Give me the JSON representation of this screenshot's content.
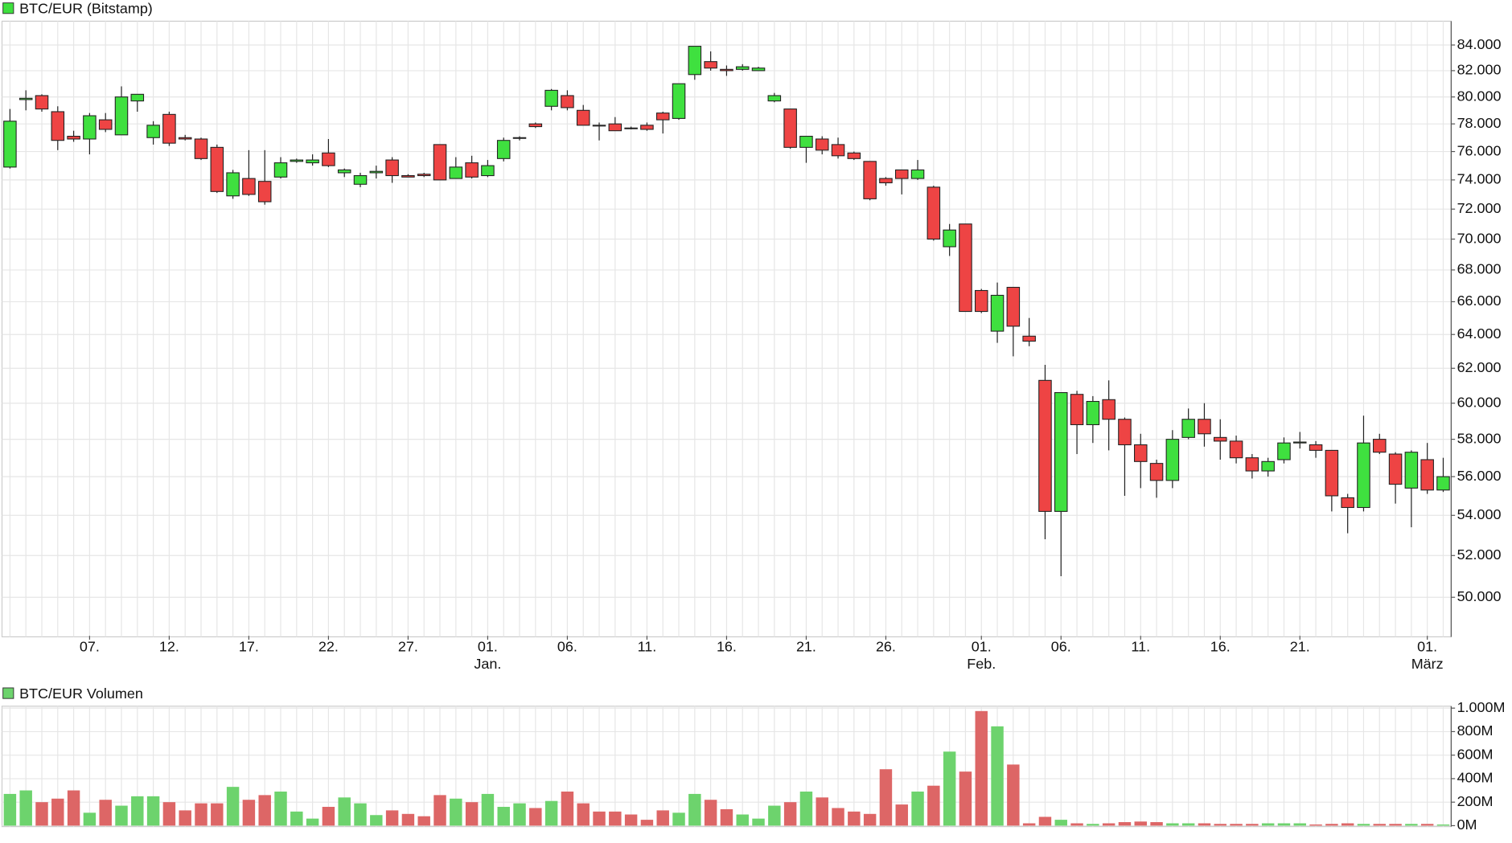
{
  "chart_data": [
    {
      "type": "candlestick",
      "title": "BTC/EUR (Bitstamp)",
      "log": true,
      "grid": true,
      "up_color": "#3fe03f",
      "down_color": "#ee4444",
      "categories": [
        null,
        null,
        null,
        null,
        null,
        "07.",
        null,
        null,
        null,
        null,
        "12.",
        null,
        null,
        null,
        null,
        "17.",
        null,
        null,
        null,
        null,
        "22.",
        null,
        null,
        null,
        null,
        "27.",
        null,
        null,
        null,
        null,
        "01.",
        null,
        null,
        null,
        null,
        "06.",
        null,
        null,
        null,
        null,
        "11.",
        null,
        null,
        null,
        null,
        "16.",
        null,
        null,
        null,
        null,
        "21.",
        null,
        null,
        null,
        null,
        "26.",
        null,
        null,
        null,
        null,
        null,
        "01.",
        null,
        null,
        null,
        null,
        "06.",
        null,
        null,
        null,
        null,
        "11.",
        null,
        null,
        null,
        null,
        "16.",
        null,
        null,
        null,
        null,
        "21.",
        null,
        null,
        null,
        null,
        null,
        null,
        null,
        "01.",
        null
      ],
      "category_sublabels": [
        null,
        null,
        null,
        null,
        null,
        null,
        null,
        null,
        null,
        null,
        null,
        null,
        null,
        null,
        null,
        null,
        null,
        null,
        null,
        null,
        null,
        null,
        null,
        null,
        null,
        null,
        null,
        null,
        null,
        null,
        "Jan.",
        null,
        null,
        null,
        null,
        null,
        null,
        null,
        null,
        null,
        null,
        null,
        null,
        null,
        null,
        null,
        null,
        null,
        null,
        null,
        null,
        null,
        null,
        null,
        null,
        null,
        null,
        null,
        null,
        null,
        null,
        "Feb.",
        null,
        null,
        null,
        null,
        null,
        null,
        null,
        null,
        null,
        null,
        null,
        null,
        null,
        null,
        null,
        null,
        null,
        null,
        null,
        null,
        null,
        null,
        null,
        null,
        null,
        null,
        null,
        "März",
        null
      ],
      "open": [
        74900,
        79800,
        80100,
        78900,
        77100,
        76900,
        78300,
        77200,
        79700,
        77000,
        78700,
        77000,
        76900,
        76300,
        72900,
        74100,
        73900,
        74200,
        75300,
        75200,
        75900,
        74500,
        73700,
        74500,
        75400,
        74300,
        74400,
        76500,
        74100,
        75200,
        74300,
        75500,
        76950,
        78000,
        79300,
        80100,
        79000,
        77900,
        78000,
        77700,
        77900,
        78800,
        78400,
        81700,
        82700,
        82100,
        82100,
        82000,
        79700,
        79100,
        76300,
        76900,
        76500,
        75900,
        75300,
        74100,
        74700,
        74100,
        73500,
        69500,
        71000,
        66700,
        64200,
        66900,
        63900,
        61300,
        54200,
        60500,
        58800,
        60200,
        59100,
        57700,
        56700,
        55800,
        58100,
        59100,
        58100,
        57900,
        57000,
        56300,
        56900,
        57800,
        57700,
        57400,
        54900,
        54400,
        58000,
        57200,
        55400,
        56900,
        55300
      ],
      "high": [
        79100,
        80500,
        80200,
        79300,
        77500,
        78800,
        78800,
        80800,
        80200,
        78200,
        78900,
        77200,
        77000,
        76500,
        74700,
        76100,
        76100,
        75600,
        75500,
        75800,
        76900,
        74800,
        74500,
        75000,
        75600,
        74400,
        74500,
        76500,
        75600,
        75700,
        75400,
        77000,
        77100,
        78100,
        80600,
        80500,
        79400,
        78100,
        78500,
        77800,
        78100,
        78900,
        81000,
        83900,
        83500,
        82400,
        82500,
        82300,
        80300,
        79100,
        77100,
        77100,
        77000,
        76000,
        75300,
        74200,
        74700,
        75400,
        73600,
        71000,
        71000,
        66800,
        67200,
        66900,
        65000,
        62200,
        60600,
        60700,
        60400,
        61300,
        59200,
        58300,
        56900,
        58500,
        59700,
        60000,
        59100,
        58200,
        57200,
        57000,
        58100,
        58400,
        57900,
        57400,
        55100,
        59300,
        58300,
        57300,
        57400,
        57800,
        57000
      ],
      "low": [
        74800,
        79000,
        78900,
        76100,
        76700,
        75800,
        77400,
        77200,
        78900,
        76500,
        76400,
        76800,
        75400,
        73100,
        72700,
        72900,
        72300,
        74100,
        75200,
        75000,
        74900,
        74200,
        73500,
        74100,
        73800,
        74200,
        74200,
        74000,
        74100,
        74100,
        74200,
        75300,
        76800,
        77700,
        79000,
        79000,
        77900,
        76800,
        77500,
        77600,
        77500,
        77300,
        78300,
        81300,
        82000,
        81600,
        82000,
        82000,
        79600,
        76200,
        75200,
        75800,
        75500,
        75400,
        72600,
        73600,
        73000,
        74000,
        69900,
        68900,
        65400,
        65300,
        63500,
        62700,
        63300,
        52800,
        51000,
        57200,
        57800,
        57400,
        55000,
        55400,
        54900,
        55400,
        58000,
        57600,
        56900,
        56700,
        55900,
        56000,
        56700,
        57500,
        57000,
        54200,
        53100,
        54200,
        57200,
        54600,
        53400,
        55100,
        55200
      ],
      "close": [
        78200,
        79900,
        79100,
        76800,
        76900,
        78600,
        77600,
        80000,
        80200,
        77900,
        76600,
        76900,
        75500,
        73200,
        74500,
        73000,
        72500,
        75200,
        75400,
        75400,
        75000,
        74700,
        74300,
        74600,
        74300,
        74200,
        74300,
        74000,
        74900,
        74200,
        75000,
        76800,
        77000,
        77800,
        80500,
        79200,
        77900,
        77850,
        77500,
        77650,
        77600,
        78300,
        81000,
        83900,
        82200,
        82000,
        82300,
        82200,
        80100,
        76300,
        77100,
        76100,
        75700,
        75500,
        72700,
        73800,
        74100,
        74700,
        70000,
        70600,
        65400,
        65400,
        66400,
        64500,
        63600,
        54200,
        60600,
        58800,
        60100,
        59100,
        57700,
        56800,
        55800,
        58000,
        59100,
        58300,
        57900,
        57000,
        56300,
        56800,
        57800,
        57850,
        57400,
        55000,
        54400,
        57800,
        57300,
        55600,
        57300,
        55300,
        56000
      ],
      "ylim": [
        48220,
        85900
      ],
      "yticks": [
        {
          "value": 84000,
          "label": "84.000"
        },
        {
          "value": 82000,
          "label": "82.000"
        },
        {
          "value": 80000,
          "label": "80.000"
        },
        {
          "value": 78000,
          "label": "78.000"
        },
        {
          "value": 76000,
          "label": "76.000"
        },
        {
          "value": 74000,
          "label": "74.000"
        },
        {
          "value": 72000,
          "label": "72.000"
        },
        {
          "value": 70000,
          "label": "70.000"
        },
        {
          "value": 68000,
          "label": "68.000"
        },
        {
          "value": 66000,
          "label": "66.000"
        },
        {
          "value": 64000,
          "label": "64.000"
        },
        {
          "value": 62000,
          "label": "62.000"
        },
        {
          "value": 60000,
          "label": "60.000"
        },
        {
          "value": 58000,
          "label": "58.000"
        },
        {
          "value": 56000,
          "label": "56.000"
        },
        {
          "value": 54000,
          "label": "54.000"
        },
        {
          "value": 52000,
          "label": "52.000"
        },
        {
          "value": 50000,
          "label": "50.000"
        }
      ]
    },
    {
      "type": "bar",
      "title": "BTC/EUR Volumen",
      "grid": true,
      "up_color": "#6dd36d",
      "down_color": "#dd6666",
      "values": [
        270,
        300,
        200,
        230,
        300,
        110,
        220,
        170,
        250,
        250,
        200,
        130,
        190,
        190,
        330,
        220,
        260,
        290,
        120,
        60,
        160,
        240,
        190,
        90,
        130,
        100,
        80,
        260,
        230,
        200,
        270,
        160,
        190,
        150,
        210,
        290,
        190,
        120,
        120,
        95,
        50,
        130,
        110,
        270,
        220,
        140,
        95,
        60,
        170,
        200,
        290,
        240,
        150,
        120,
        100,
        480,
        180,
        290,
        340,
        630,
        460,
        975,
        845,
        520,
        20,
        75,
        50,
        20,
        15,
        20,
        30,
        35,
        30,
        20,
        20,
        20,
        15,
        15,
        15,
        20,
        20,
        20,
        10,
        15,
        20,
        15,
        15,
        15,
        15,
        15,
        10
      ],
      "ylim": [
        0,
        1000
      ],
      "yticks": [
        {
          "value": 0,
          "label": "0M"
        },
        {
          "value": 200,
          "label": "200M"
        },
        {
          "value": 400,
          "label": "400M"
        },
        {
          "value": 600,
          "label": "600M"
        },
        {
          "value": 800,
          "label": "800M"
        },
        {
          "value": 1000,
          "label": "1.000M"
        }
      ]
    }
  ]
}
